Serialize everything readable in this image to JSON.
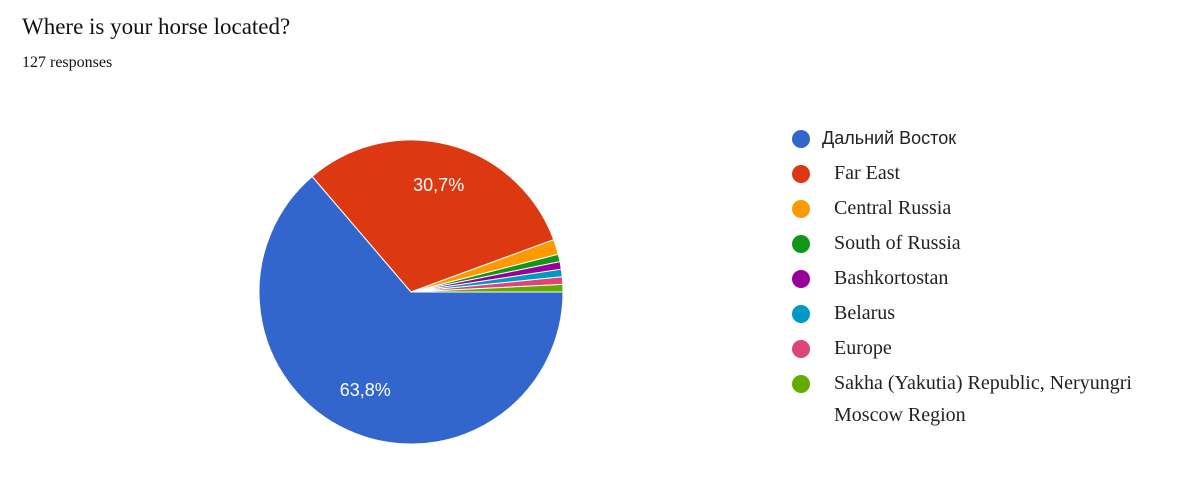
{
  "chart_data": {
    "type": "pie",
    "title": "Where is your horse located?",
    "subtitle": "127 responses",
    "categories": [
      "Дальний Восток",
      "Far East",
      "Central Russia",
      "South of Russia",
      "Bashkortostan",
      "Belarus",
      "Europe",
      "Sakha (Yakutia) Republic, Neryungri Moscow Region"
    ],
    "values": [
      63.8,
      30.7,
      1.6,
      0.8,
      0.8,
      0.8,
      0.8,
      0.8
    ],
    "value_labels": [
      "63,8%",
      "30,7%",
      null,
      null,
      null,
      null,
      null,
      null
    ],
    "colors": [
      "#3366cc",
      "#dc3912",
      "#ff9900",
      "#109618",
      "#990099",
      "#0099c6",
      "#dd4477",
      "#66aa00"
    ],
    "legend": "right"
  }
}
